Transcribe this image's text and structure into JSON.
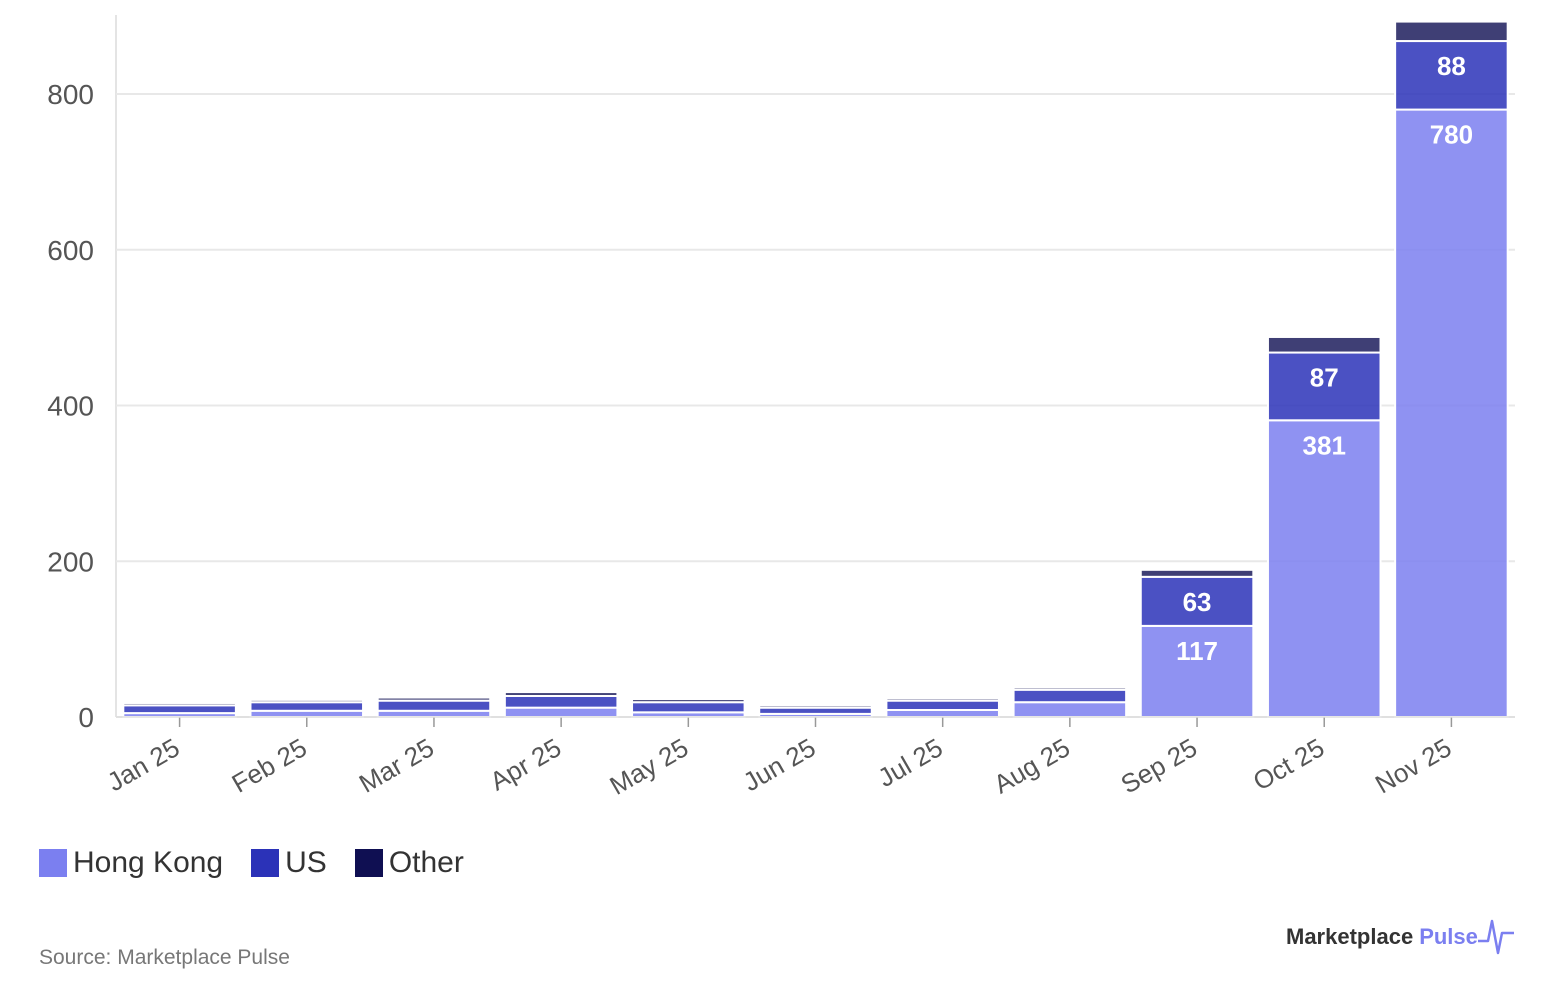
{
  "chart_data": {
    "type": "bar",
    "stacked": true,
    "categories": [
      "Jan 25",
      "Feb 25",
      "Mar 25",
      "Apr 25",
      "May 25",
      "Jun 25",
      "Jul 25",
      "Aug 25",
      "Sep 25",
      "Oct 25",
      "Nov 25"
    ],
    "series": [
      {
        "name": "Hong Kong",
        "color": "#7b7ff0",
        "values": [
          5,
          8,
          8,
          12,
          6,
          4,
          9,
          19,
          117,
          381,
          780
        ],
        "labels": [
          "",
          "",
          "",
          "",
          "",
          "",
          "",
          "",
          "117",
          "381",
          "780"
        ]
      },
      {
        "name": "US",
        "color": "#2b32b8",
        "values": [
          10,
          11,
          13,
          15,
          13,
          8,
          12,
          16,
          63,
          87,
          88
        ],
        "labels": [
          "",
          "",
          "",
          "",
          "",
          "",
          "",
          "",
          "63",
          "87",
          "88"
        ]
      },
      {
        "name": "Other",
        "color": "#0f0f52",
        "values": [
          3,
          3,
          4,
          5,
          4,
          3,
          3,
          3,
          9,
          20,
          25
        ],
        "labels": [
          "",
          "",
          "",
          "",
          "",
          "",
          "",
          "",
          "",
          "",
          ""
        ]
      }
    ],
    "ylim": [
      0,
      900
    ],
    "yticks": [
      0,
      200,
      400,
      600,
      800
    ],
    "ytick_labels": [
      "0",
      "200",
      "400",
      "600",
      "800"
    ],
    "grid": true,
    "legend": "bottom-left"
  },
  "legend": {
    "items": [
      {
        "label": "Hong Kong",
        "color": "#7b7ff0"
      },
      {
        "label": "US",
        "color": "#2b32b8"
      },
      {
        "label": "Other",
        "color": "#0f0f52"
      }
    ]
  },
  "footer": {
    "source": "Source: Marketplace Pulse",
    "brand_main": "Marketplace",
    "brand_accent": "Pulse"
  }
}
